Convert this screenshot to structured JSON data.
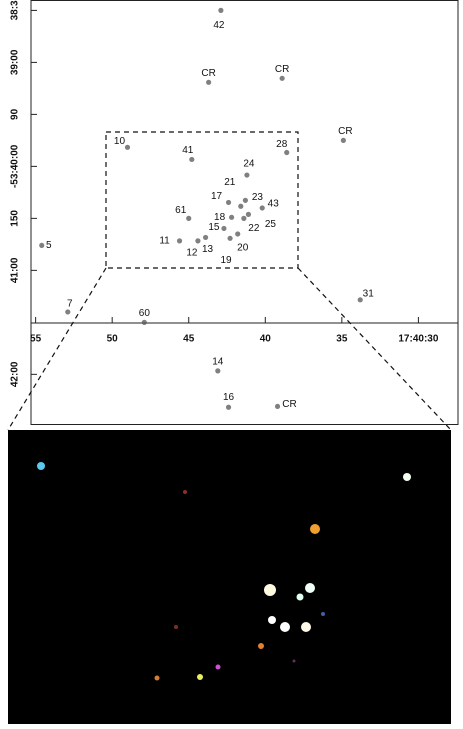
{
  "chart_data": {
    "type": "scatter",
    "x": [
      42.9,
      43.7,
      38.9,
      34.9,
      49.0,
      38.6,
      44.8,
      41.2,
      41.6,
      42.4,
      41.3,
      40.2,
      45.0,
      42.2,
      41.4,
      41.1,
      42.7,
      41.8,
      45.6,
      44.4,
      43.9,
      42.3,
      54.6,
      52.9,
      47.9,
      33.8,
      43.1,
      42.4,
      39.2
    ],
    "values": [
      30,
      71.5,
      69.2,
      105,
      109,
      112,
      116,
      125,
      143,
      140.8,
      139.6,
      144,
      150,
      149.4,
      150,
      147.7,
      155.8,
      159,
      163,
      163,
      161,
      161.5,
      165.6,
      204,
      210,
      197,
      238,
      259,
      258.5
    ],
    "labels": [
      "42",
      "CR",
      "CR",
      "CR",
      "10",
      "28",
      "41",
      "24",
      "21",
      "17",
      "23",
      "43",
      "61",
      "18",
      "22",
      "25",
      "15",
      "20",
      "11",
      "12",
      "13",
      "19",
      "5",
      "7",
      "60",
      "31",
      "14",
      "16",
      "CR"
    ],
    "color": "#555555",
    "xlim": [
      55.4,
      27.1
    ],
    "xticks": [
      55,
      50,
      45,
      40,
      35,
      {
        "value": 30,
        "label": "17:40:30"
      }
    ],
    "ylim": [
      24,
      269
    ],
    "yticks": [
      {
        "value": 30,
        "label": "38:3"
      },
      {
        "value": 60,
        "label": "39:00"
      },
      90,
      {
        "value": 120,
        "label": "-53:40:00"
      },
      150,
      {
        "value": 180,
        "label": "41:00"
      },
      {
        "value": 240,
        "label": "42:00"
      }
    ]
  }
}
